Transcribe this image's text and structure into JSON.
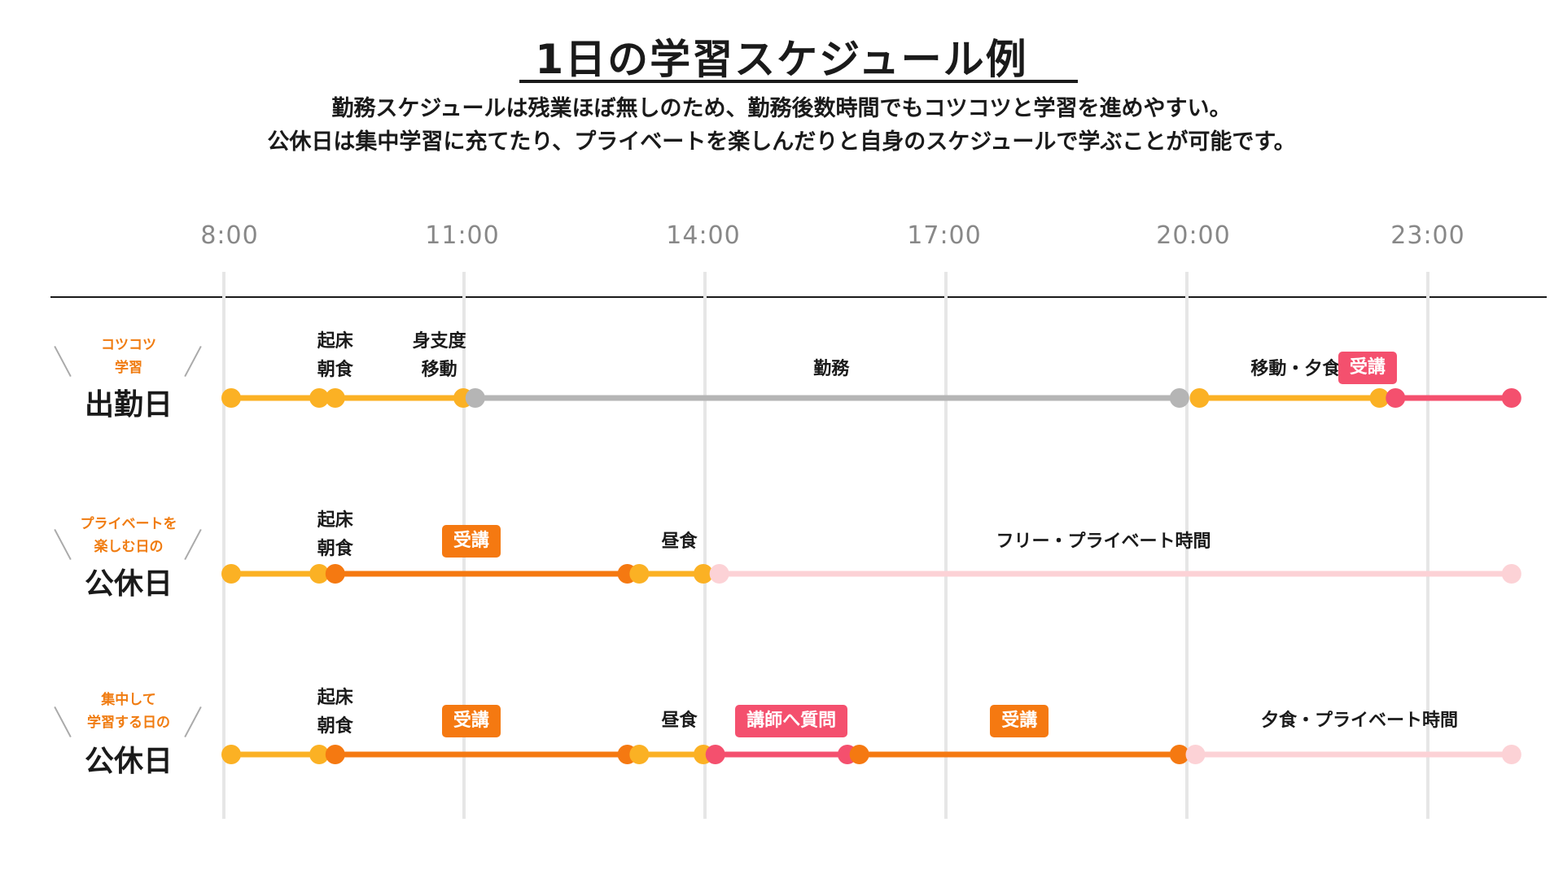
{
  "title": "1日の学習スケジュール例",
  "subtitle_line1": "勤務スケジュールは残業ほぼ無しのため、勤務後数時間でもコツコツと学習を進めやすい。",
  "subtitle_line2": "公休日は集中学習に充てたり、プライベートを楽しんだりと自身のスケジュールで学ぶことが可能です。",
  "time_axis": [
    "8:00",
    "11:00",
    "14:00",
    "17:00",
    "20:00",
    "23:00"
  ],
  "colors": {
    "gold": "#fbb124",
    "orange": "#f57911",
    "gray": "#b5b5b5",
    "red": "#f4506e",
    "pink": "#fcd2d6",
    "tag": "#f07c11",
    "badge_orange": "#f57911",
    "badge_red": "#f4506e"
  },
  "rows": [
    {
      "tag_line1": "コツコツ",
      "tag_line2": "学習",
      "title": "出勤日",
      "labels": [
        {
          "line1": "起床",
          "line2": "朝食",
          "t": 9.3
        },
        {
          "line1": "身支度",
          "line2": "移動",
          "t": 10.6
        },
        {
          "line1": "勤務",
          "line2": "",
          "t": 15.5
        },
        {
          "line1": "移動・夕食",
          "line2": "",
          "t": 21.3
        }
      ],
      "badges": [
        {
          "text": "受講",
          "t": 22.2,
          "style": "red"
        }
      ],
      "segments": [
        {
          "start": 8.0,
          "end": 9.1,
          "color": "gold"
        },
        {
          "start": 9.3,
          "end": 10.9,
          "color": "gold"
        },
        {
          "start": 11.05,
          "end": 19.85,
          "color": "gray"
        },
        {
          "start": 20.1,
          "end": 22.35,
          "color": "gold"
        },
        {
          "start": 22.55,
          "end": 24.0,
          "color": "red"
        }
      ]
    },
    {
      "tag_line1": "プライベートを",
      "tag_line2": "楽しむ日の",
      "title": "公休日",
      "labels": [
        {
          "line1": "起床",
          "line2": "朝食",
          "t": 9.3
        },
        {
          "line1": "昼食",
          "line2": "",
          "t": 13.6
        },
        {
          "line1": "フリー・プライベート時間",
          "line2": "",
          "t": 18.9
        }
      ],
      "badges": [
        {
          "text": "受講",
          "t": 11.0,
          "style": "orange"
        }
      ],
      "segments": [
        {
          "start": 8.0,
          "end": 9.1,
          "color": "gold"
        },
        {
          "start": 9.3,
          "end": 12.95,
          "color": "orange"
        },
        {
          "start": 13.1,
          "end": 13.9,
          "color": "gold"
        },
        {
          "start": 14.1,
          "end": 24.0,
          "color": "pink"
        }
      ]
    },
    {
      "tag_line1": "集中して",
      "tag_line2": "学習する日の",
      "title": "公休日",
      "labels": [
        {
          "line1": "起床",
          "line2": "朝食",
          "t": 9.3
        },
        {
          "line1": "昼食",
          "line2": "",
          "t": 13.6
        }
      ],
      "badges": [
        {
          "text": "受講",
          "t": 11.0,
          "style": "orange"
        },
        {
          "text": "講師へ質問",
          "t": 15.0,
          "style": "red"
        },
        {
          "text": "受講",
          "t": 17.85,
          "style": "orange"
        }
      ],
      "labels_right": [
        {
          "line1": "夕食・プライベート時間",
          "line2": "",
          "t": 22.1
        }
      ],
      "segments": [
        {
          "start": 8.0,
          "end": 9.1,
          "color": "gold"
        },
        {
          "start": 9.3,
          "end": 12.95,
          "color": "orange"
        },
        {
          "start": 13.1,
          "end": 13.9,
          "color": "gold"
        },
        {
          "start": 14.05,
          "end": 15.7,
          "color": "red"
        },
        {
          "start": 15.85,
          "end": 19.85,
          "color": "orange"
        },
        {
          "start": 20.05,
          "end": 24.0,
          "color": "pink"
        }
      ]
    }
  ]
}
